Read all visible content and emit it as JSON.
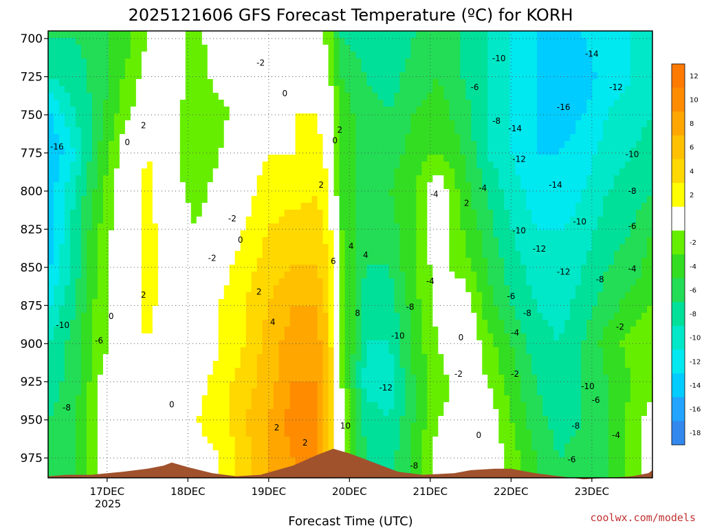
{
  "chart_data": {
    "type": "heatmap",
    "title": "2025121606 GFS Forecast Temperature (ºC) for KORH",
    "xlabel": "Forecast Time (UTC)",
    "ylabel": "",
    "y_axis": {
      "units": "hPa",
      "ticks": [
        700,
        725,
        750,
        775,
        800,
        825,
        850,
        875,
        900,
        925,
        950,
        975
      ],
      "tick_labels": [
        "700",
        "725",
        "750",
        "775",
        "800",
        "825",
        "850",
        "875",
        "900",
        "925",
        "950",
        "975"
      ],
      "range": [
        988,
        695
      ],
      "inverted": true
    },
    "x_axis": {
      "units": "day (December 2025)",
      "range": [
        16.27,
        23.75
      ],
      "ticks": [
        17,
        18,
        19,
        20,
        21,
        22,
        23
      ],
      "tick_labels": [
        "17DEC",
        "18DEC",
        "19DEC",
        "20DEC",
        "21DEC",
        "22DEC",
        "23DEC"
      ],
      "year_label": "2025"
    },
    "grid": "dotted",
    "colorbar": {
      "placement": "right",
      "levels": [
        {
          "label": "12",
          "color": "#ff7a00"
        },
        {
          "label": "10",
          "color": "#ff8c00"
        },
        {
          "label": "8",
          "color": "#ffa600"
        },
        {
          "label": "6",
          "color": "#ffc000"
        },
        {
          "label": "4",
          "color": "#ffd800"
        },
        {
          "label": "2",
          "color": "#ffff00"
        },
        {
          "label": "",
          "color": "#ffffff"
        },
        {
          "label": "-2",
          "color": "#66ee00"
        },
        {
          "label": "-4",
          "color": "#33dd22"
        },
        {
          "label": "-6",
          "color": "#22dd55"
        },
        {
          "label": "-8",
          "color": "#00e099"
        },
        {
          "label": "-10",
          "color": "#00e8c8"
        },
        {
          "label": "-12",
          "color": "#00e8f0"
        },
        {
          "label": "-14",
          "color": "#00ccff"
        },
        {
          "label": "-16",
          "color": "#22a4ff"
        },
        {
          "label": "-18",
          "color": "#3388ee"
        }
      ]
    },
    "terrain_color": "#a0522d",
    "terrain_top_hpa": [
      [
        16.27,
        987
      ],
      [
        16.5,
        986
      ],
      [
        16.8,
        986
      ],
      [
        17.2,
        984
      ],
      [
        17.5,
        982
      ],
      [
        17.7,
        980
      ],
      [
        17.8,
        978
      ],
      [
        18.0,
        981
      ],
      [
        18.3,
        985
      ],
      [
        18.6,
        987
      ],
      [
        18.9,
        986
      ],
      [
        19.3,
        980
      ],
      [
        19.6,
        973
      ],
      [
        19.8,
        969
      ],
      [
        20.0,
        972
      ],
      [
        20.3,
        978
      ],
      [
        20.6,
        984
      ],
      [
        20.9,
        986
      ],
      [
        21.3,
        985
      ],
      [
        21.5,
        983
      ],
      [
        21.8,
        982
      ],
      [
        22.0,
        982
      ],
      [
        22.3,
        985
      ],
      [
        22.6,
        987
      ],
      [
        22.9,
        989
      ],
      [
        23.2,
        988
      ],
      [
        23.5,
        987
      ],
      [
        23.7,
        985
      ],
      [
        23.75,
        983
      ]
    ],
    "temperature_cells": {
      "note": "temperature (ºC) on a grid of times (day of Dec) x pressure levels (hPa)",
      "times": [
        16.3,
        16.6,
        16.9,
        17.2,
        17.5,
        17.8,
        18.1,
        18.4,
        18.7,
        19.0,
        19.3,
        19.6,
        19.75,
        19.9,
        20.2,
        20.5,
        20.8,
        21.1,
        21.4,
        21.7,
        22.0,
        22.3,
        22.6,
        22.9,
        23.2,
        23.5,
        23.75
      ],
      "levels": [
        700,
        725,
        750,
        775,
        800,
        825,
        850,
        875,
        900,
        925,
        950,
        975
      ],
      "values": [
        [
          -8,
          -8,
          -7,
          -5,
          -2,
          0,
          -3,
          0,
          -1,
          0,
          1,
          0,
          -3,
          -8,
          -9,
          -10,
          -8,
          -6,
          -8,
          -10,
          -12,
          -14,
          -15,
          -14,
          -13,
          -12,
          -10
        ],
        [
          -10,
          -9,
          -7,
          -4,
          -1,
          0,
          -3,
          -1,
          -2,
          0,
          1,
          1,
          -2,
          -6,
          -8,
          -9,
          -7,
          -6,
          -8,
          -10,
          -12,
          -14,
          -16,
          -15,
          -13,
          -12,
          -10
        ],
        [
          -14,
          -10,
          -7,
          -3,
          0,
          -1,
          -4,
          -3,
          0,
          1,
          2,
          2,
          0,
          -5,
          -7,
          -8,
          -6,
          -5,
          -7,
          -10,
          -12,
          -14,
          -15,
          -14,
          -12,
          -11,
          -10
        ],
        [
          -16,
          -12,
          -6,
          -1,
          2,
          -1,
          -4,
          -2,
          1,
          2,
          2,
          3,
          1,
          -5,
          -7,
          -7,
          -5,
          -4,
          -6,
          -10,
          -12,
          -14,
          -14,
          -13,
          -11,
          -10,
          -9
        ],
        [
          -15,
          -10,
          -5,
          0,
          3,
          -1,
          -3,
          -1,
          1,
          3,
          3,
          4,
          2,
          -5,
          -7,
          -6,
          -4,
          0,
          -5,
          -8,
          -11,
          -13,
          -14,
          -12,
          -10,
          -9,
          -8
        ],
        [
          -15,
          -9,
          -4,
          0,
          3,
          0,
          -2,
          0,
          2,
          4,
          5,
          5,
          3,
          -4,
          -7,
          -7,
          -4,
          0,
          -4,
          -7,
          -10,
          -12,
          -12,
          -11,
          -9,
          -8,
          -6
        ],
        [
          -14,
          -9,
          -4,
          0,
          3,
          0,
          -2,
          1,
          3,
          5,
          6,
          6,
          4,
          -3,
          -8,
          -8,
          -4,
          -1,
          -3,
          -6,
          -9,
          -11,
          -12,
          -10,
          -8,
          -7,
          -5
        ],
        [
          -12,
          -8,
          -3,
          0,
          3,
          0,
          -1,
          2,
          4,
          6,
          8,
          8,
          5,
          -3,
          -9,
          -9,
          -5,
          -1,
          0,
          -5,
          -8,
          -10,
          -11,
          -9,
          -7,
          -5,
          -4
        ],
        [
          -10,
          -7,
          -3,
          0,
          2,
          0,
          0,
          2,
          4,
          7,
          9,
          9,
          5,
          -2,
          -10,
          -10,
          -5,
          -2,
          1,
          -3,
          -6,
          -9,
          -10,
          -8,
          -5,
          -3,
          -2
        ],
        [
          -9,
          -7,
          -2,
          0,
          1,
          0,
          1,
          3,
          5,
          7,
          10,
          10,
          6,
          -2,
          -11,
          -11,
          -6,
          -3,
          -1,
          -2,
          -5,
          -8,
          -10,
          -8,
          -6,
          -4,
          -3
        ],
        [
          -8,
          -6,
          -2,
          -1,
          0,
          1,
          2,
          3,
          6,
          8,
          11,
          11,
          6,
          -1,
          -9,
          -10,
          -6,
          -2,
          -1,
          0,
          -4,
          -7,
          -9,
          -8,
          -6,
          -3,
          -1
        ],
        [
          -7,
          -6,
          -2,
          -1,
          0,
          1,
          1,
          2,
          5,
          8,
          10,
          10,
          5,
          -1,
          -8,
          -9,
          -5,
          -1,
          -1,
          0,
          -3,
          -6,
          -8,
          -7,
          -6,
          -3,
          0
        ]
      ]
    },
    "contour_labels": [
      {
        "text": "-16",
        "t": 16.38,
        "p": 771
      },
      {
        "text": "-10",
        "t": 16.45,
        "p": 888
      },
      {
        "text": "-8",
        "t": 16.5,
        "p": 942
      },
      {
        "text": "-6",
        "t": 16.9,
        "p": 898
      },
      {
        "text": "0",
        "t": 17.05,
        "p": 882
      },
      {
        "text": "0",
        "t": 17.25,
        "p": 768
      },
      {
        "text": "2",
        "t": 17.45,
        "p": 757
      },
      {
        "text": "2",
        "t": 17.45,
        "p": 868
      },
      {
        "text": "0",
        "t": 17.8,
        "p": 940
      },
      {
        "text": "-2",
        "t": 18.3,
        "p": 844
      },
      {
        "text": "-2",
        "t": 18.55,
        "p": 818
      },
      {
        "text": "0",
        "t": 18.65,
        "p": 832
      },
      {
        "text": "-2",
        "t": 18.9,
        "p": 716
      },
      {
        "text": "0",
        "t": 19.2,
        "p": 736
      },
      {
        "text": "2",
        "t": 18.88,
        "p": 866
      },
      {
        "text": "4",
        "t": 19.05,
        "p": 886
      },
      {
        "text": "2",
        "t": 19.1,
        "p": 955
      },
      {
        "text": "2",
        "t": 19.45,
        "p": 965
      },
      {
        "text": "2",
        "t": 19.65,
        "p": 796
      },
      {
        "text": "6",
        "t": 19.8,
        "p": 846
      },
      {
        "text": "4",
        "t": 20.02,
        "p": 836
      },
      {
        "text": "0",
        "t": 19.82,
        "p": 767
      },
      {
        "text": "2",
        "t": 19.88,
        "p": 760
      },
      {
        "text": "4",
        "t": 20.2,
        "p": 842
      },
      {
        "text": "8",
        "t": 20.1,
        "p": 880
      },
      {
        "text": "10",
        "t": 19.95,
        "p": 954
      },
      {
        "text": "-8",
        "t": 20.75,
        "p": 876
      },
      {
        "text": "-10",
        "t": 20.6,
        "p": 895
      },
      {
        "text": "-12",
        "t": 20.45,
        "p": 929
      },
      {
        "text": "-8",
        "t": 20.8,
        "p": 980
      },
      {
        "text": "-4",
        "t": 21.05,
        "p": 802
      },
      {
        "text": "-4",
        "t": 21.0,
        "p": 859
      },
      {
        "text": "-2",
        "t": 21.35,
        "p": 920
      },
      {
        "text": "0",
        "t": 21.38,
        "p": 896
      },
      {
        "text": "2",
        "t": 21.45,
        "p": 808
      },
      {
        "text": "-4",
        "t": 21.65,
        "p": 798
      },
      {
        "text": "0",
        "t": 21.6,
        "p": 960
      },
      {
        "text": "-6",
        "t": 21.55,
        "p": 732
      },
      {
        "text": "-10",
        "t": 21.85,
        "p": 713
      },
      {
        "text": "-8",
        "t": 21.82,
        "p": 754
      },
      {
        "text": "-14",
        "t": 22.05,
        "p": 759
      },
      {
        "text": "-12",
        "t": 22.1,
        "p": 779
      },
      {
        "text": "-10",
        "t": 22.1,
        "p": 826
      },
      {
        "text": "-6",
        "t": 22.0,
        "p": 869
      },
      {
        "text": "-8",
        "t": 22.2,
        "p": 880
      },
      {
        "text": "-4",
        "t": 22.05,
        "p": 893
      },
      {
        "text": "-2",
        "t": 22.05,
        "p": 920
      },
      {
        "text": "-16",
        "t": 22.65,
        "p": 745
      },
      {
        "text": "-14",
        "t": 22.55,
        "p": 796
      },
      {
        "text": "-12",
        "t": 22.35,
        "p": 838
      },
      {
        "text": "-12",
        "t": 22.65,
        "p": 853
      },
      {
        "text": "-10",
        "t": 22.85,
        "p": 820
      },
      {
        "text": "-8",
        "t": 22.8,
        "p": 954
      },
      {
        "text": "-10",
        "t": 22.95,
        "p": 928
      },
      {
        "text": "-6",
        "t": 22.75,
        "p": 976
      },
      {
        "text": "-14",
        "t": 23.0,
        "p": 710
      },
      {
        "text": "-12",
        "t": 23.3,
        "p": 732
      },
      {
        "text": "-10",
        "t": 23.5,
        "p": 776
      },
      {
        "text": "-8",
        "t": 23.5,
        "p": 800
      },
      {
        "text": "-6",
        "t": 23.5,
        "p": 823
      },
      {
        "text": "-4",
        "t": 23.5,
        "p": 851
      },
      {
        "text": "-8",
        "t": 23.1,
        "p": 858
      },
      {
        "text": "-6",
        "t": 23.05,
        "p": 937
      },
      {
        "text": "-2",
        "t": 23.35,
        "p": 889
      },
      {
        "text": "-4",
        "t": 23.3,
        "p": 960
      }
    ]
  },
  "credit": "coolwx.com/models"
}
